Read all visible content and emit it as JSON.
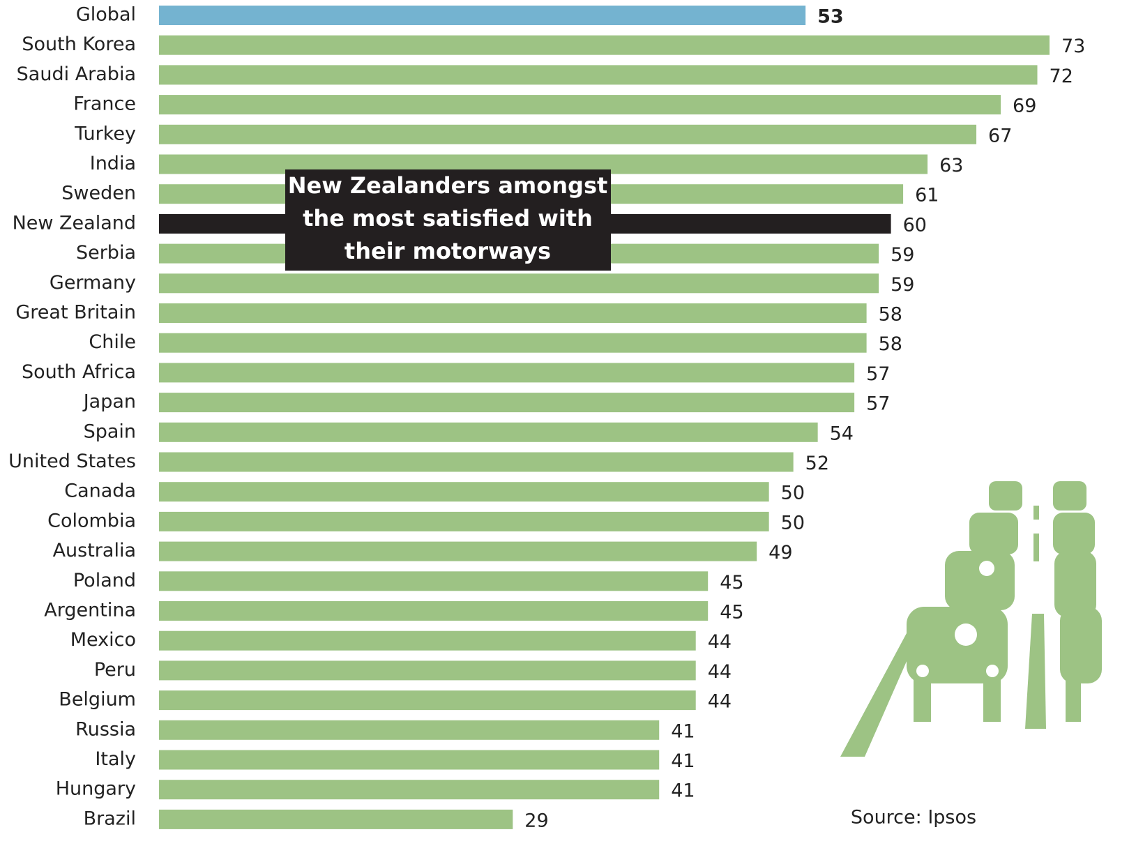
{
  "chart_data": {
    "type": "hbar",
    "categories": [
      "Global",
      "South Korea",
      "Saudi Arabia",
      "France",
      "Turkey",
      "India",
      "Sweden",
      "New Zealand",
      "Serbia",
      "Germany",
      "Great Britain",
      "Chile",
      "South Africa",
      "Japan",
      "Spain",
      "United States",
      "Canada",
      "Colombia",
      "Australia",
      "Poland",
      "Argentina",
      "Mexico",
      "Peru",
      "Belgium",
      "Russia",
      "Italy",
      "Hungary",
      "Brazil"
    ],
    "values": [
      53,
      73,
      72,
      69,
      67,
      63,
      61,
      60,
      59,
      59,
      58,
      58,
      57,
      57,
      54,
      52,
      50,
      50,
      49,
      45,
      45,
      44,
      44,
      44,
      41,
      41,
      41,
      29
    ],
    "colors": [
      "#74b3d0",
      "#9dc384",
      "#9dc384",
      "#9dc384",
      "#9dc384",
      "#9dc384",
      "#9dc384",
      "#231f20",
      "#9dc384",
      "#9dc384",
      "#9dc384",
      "#9dc384",
      "#9dc384",
      "#9dc384",
      "#9dc384",
      "#9dc384",
      "#9dc384",
      "#9dc384",
      "#9dc384",
      "#9dc384",
      "#9dc384",
      "#9dc384",
      "#9dc384",
      "#9dc384",
      "#9dc384",
      "#9dc384",
      "#9dc384",
      "#9dc384"
    ],
    "xlim": [
      0,
      75
    ],
    "annotation": [
      "New Zealanders amongst",
      "the most satisfied with",
      "their motorways"
    ],
    "source": "Source: Ipsos"
  }
}
